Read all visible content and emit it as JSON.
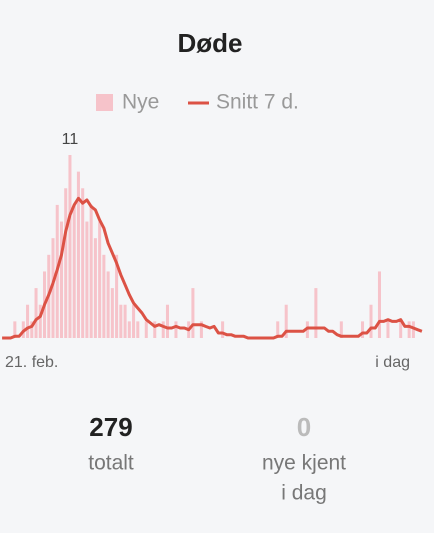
{
  "chart_data": {
    "type": "bar_line",
    "title": "Døde",
    "categories": [
      "21. feb.",
      null,
      null,
      null,
      null,
      null,
      null,
      null,
      null,
      null,
      null,
      null,
      null,
      null,
      null,
      null,
      null,
      null,
      null,
      null,
      null,
      null,
      null,
      null,
      null,
      null,
      null,
      null,
      null,
      null,
      null,
      null,
      null,
      null,
      null,
      null,
      null,
      null,
      null,
      null,
      null,
      null,
      null,
      null,
      null,
      null,
      null,
      null,
      null,
      null,
      null,
      null,
      null,
      null,
      null,
      null,
      null,
      null,
      null,
      null,
      null,
      null,
      null,
      null,
      null,
      null,
      null,
      null,
      null,
      null,
      null,
      null,
      null,
      null,
      null,
      null,
      null,
      null,
      null,
      null,
      null,
      null,
      null,
      null,
      null,
      null,
      null,
      null,
      null,
      null,
      null,
      null,
      null,
      null,
      null,
      null,
      null,
      null,
      null,
      "i dag"
    ],
    "series": [
      {
        "name": "Nye",
        "color": "#f6c3ca",
        "values": [
          0,
          0,
          0,
          1,
          0,
          1,
          2,
          1,
          3,
          2,
          4,
          5,
          6,
          8,
          7,
          9,
          11,
          8,
          10,
          9,
          7,
          8,
          6,
          7,
          5,
          4,
          3,
          5,
          2,
          2,
          1,
          2,
          1,
          0,
          1,
          0,
          1,
          0,
          1,
          2,
          0,
          1,
          0,
          0,
          1,
          3,
          0,
          1,
          0,
          0,
          0,
          0,
          1,
          0,
          0,
          0,
          0,
          0,
          0,
          0,
          0,
          0,
          0,
          0,
          0,
          1,
          0,
          2,
          0,
          0,
          0,
          0,
          1,
          0,
          3,
          0,
          0,
          0,
          0,
          0,
          1,
          0,
          0,
          0,
          0,
          1,
          0,
          2,
          0,
          4,
          0,
          1,
          0,
          0,
          1,
          0,
          1,
          1,
          0,
          0
        ]
      },
      {
        "name": "Snitt 7 d.",
        "color": "#dc5245",
        "values": [
          0,
          0,
          0,
          0.1,
          0.1,
          0.4,
          0.6,
          0.7,
          1.1,
          1.3,
          2,
          2.6,
          3.3,
          4.1,
          5,
          6.4,
          7.4,
          8,
          8.4,
          8.1,
          8.3,
          7.9,
          7.7,
          7.1,
          6.6,
          5.7,
          5.1,
          4.5,
          3.8,
          3.2,
          2.6,
          2.1,
          1.8,
          1.5,
          1.1,
          0.9,
          0.7,
          0.8,
          0.7,
          0.6,
          0.6,
          0.7,
          0.6,
          0.6,
          0.5,
          0.8,
          0.8,
          0.8,
          0.7,
          0.6,
          0.7,
          0.3,
          0.3,
          0.2,
          0.2,
          0.1,
          0.1,
          0.1,
          0,
          0,
          0,
          0,
          0,
          0,
          0,
          0.1,
          0.1,
          0.4,
          0.4,
          0.4,
          0.4,
          0.4,
          0.6,
          0.6,
          0.6,
          0.6,
          0.6,
          0.4,
          0.4,
          0.2,
          0.1,
          0.1,
          0.1,
          0.1,
          0.1,
          0.3,
          0.3,
          0.6,
          0.6,
          1,
          1,
          1.1,
          1,
          1,
          1.1,
          0.7,
          0.7,
          0.6,
          0.5,
          0.4
        ]
      }
    ],
    "ylim": [
      0,
      11
    ]
  },
  "stats": [
    {
      "value": "279",
      "label": "totalt"
    },
    {
      "value": "0",
      "label": "nye kjent",
      "label2": "i dag"
    }
  ]
}
